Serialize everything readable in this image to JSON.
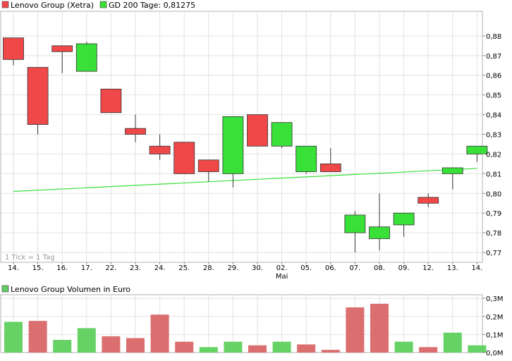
{
  "chart_data": [
    {
      "type": "candlestick",
      "legend": [
        {
          "label": "Lenovo Group (Xetra)",
          "color": "#f04848"
        },
        {
          "label": "GD 200 Tage: 0,81275",
          "color": "#38e038"
        }
      ],
      "legend_placement": "top-left",
      "note": "1 Tick = 1 Tag",
      "categories": [
        "14.",
        "15.",
        "16.",
        "17.",
        "22.",
        "23.",
        "24.",
        "25.",
        "28.",
        "29.",
        "30.",
        "02.",
        "05.",
        "06.",
        "07.",
        "08.",
        "09.",
        "12.",
        "13.",
        "14."
      ],
      "month_label": {
        "text": "Mai",
        "category_index": 11
      },
      "ohlc": [
        {
          "open": 0.879,
          "high": 0.879,
          "low": 0.865,
          "close": 0.868
        },
        {
          "open": 0.864,
          "high": 0.864,
          "low": 0.83,
          "close": 0.835
        },
        {
          "open": 0.875,
          "high": 0.875,
          "low": 0.861,
          "close": 0.872
        },
        {
          "open": 0.862,
          "high": 0.877,
          "low": 0.862,
          "close": 0.876
        },
        {
          "open": 0.853,
          "high": 0.853,
          "low": 0.841,
          "close": 0.841
        },
        {
          "open": 0.833,
          "high": 0.84,
          "low": 0.826,
          "close": 0.83
        },
        {
          "open": 0.824,
          "high": 0.83,
          "low": 0.817,
          "close": 0.82
        },
        {
          "open": 0.826,
          "high": 0.826,
          "low": 0.81,
          "close": 0.81
        },
        {
          "open": 0.817,
          "high": 0.817,
          "low": 0.806,
          "close": 0.811
        },
        {
          "open": 0.81,
          "high": 0.839,
          "low": 0.803,
          "close": 0.839
        },
        {
          "open": 0.84,
          "high": 0.84,
          "low": 0.824,
          "close": 0.824
        },
        {
          "open": 0.824,
          "high": 0.836,
          "low": 0.823,
          "close": 0.836
        },
        {
          "open": 0.811,
          "high": 0.824,
          "low": 0.81,
          "close": 0.824
        },
        {
          "open": 0.815,
          "high": 0.823,
          "low": 0.811,
          "close": 0.811
        },
        {
          "open": 0.78,
          "high": 0.791,
          "low": 0.77,
          "close": 0.789
        },
        {
          "open": 0.777,
          "high": 0.8,
          "low": 0.771,
          "close": 0.783
        },
        {
          "open": 0.784,
          "high": 0.79,
          "low": 0.778,
          "close": 0.79
        },
        {
          "open": 0.798,
          "high": 0.8,
          "low": 0.793,
          "close": 0.795
        },
        {
          "open": 0.81,
          "high": 0.813,
          "low": 0.802,
          "close": 0.813
        },
        {
          "open": 0.82,
          "high": 0.824,
          "low": 0.816,
          "close": 0.824
        }
      ],
      "moving_average": {
        "start": 0.801,
        "end": 0.8127,
        "color": "#38e038"
      },
      "ylim": [
        0.765,
        0.8925
      ],
      "yticks": [
        0.77,
        0.78,
        0.79,
        0.8,
        0.81,
        0.82,
        0.83,
        0.84,
        0.85,
        0.86,
        0.87,
        0.88
      ],
      "ytick_labels": [
        "0,77",
        "0,78",
        "0,79",
        "0,80",
        "0,81",
        "0,82",
        "0,83",
        "0,84",
        "0,85",
        "0,86",
        "0,87",
        "0,88"
      ],
      "grid": true,
      "colors": {
        "up": "#38e038",
        "down": "#f04848"
      }
    },
    {
      "type": "bar",
      "legend": [
        {
          "label": "Lenovo Group Volumen in Euro",
          "color": "#66cc66"
        }
      ],
      "legend_placement": "top-left",
      "values": [
        0.17,
        0.175,
        0.07,
        0.135,
        0.09,
        0.08,
        0.21,
        0.06,
        0.03,
        0.06,
        0.04,
        0.06,
        0.045,
        0.015,
        0.25,
        0.27,
        0.06,
        0.03,
        0.11,
        0.04
      ],
      "bar_direction": [
        "up",
        "down",
        "up",
        "up",
        "down",
        "down",
        "down",
        "down",
        "up",
        "up",
        "down",
        "up",
        "down",
        "down",
        "down",
        "down",
        "up",
        "down",
        "up",
        "up"
      ],
      "colors": {
        "up": "#66d266",
        "down": "#db6e6e"
      },
      "ylim": [
        0,
        0.32
      ],
      "yticks": [
        0,
        0.1,
        0.2,
        0.3
      ],
      "ytick_labels": [
        "0,0M",
        "0,1M",
        "0,2M",
        "0,3M"
      ],
      "grid": true
    }
  ]
}
